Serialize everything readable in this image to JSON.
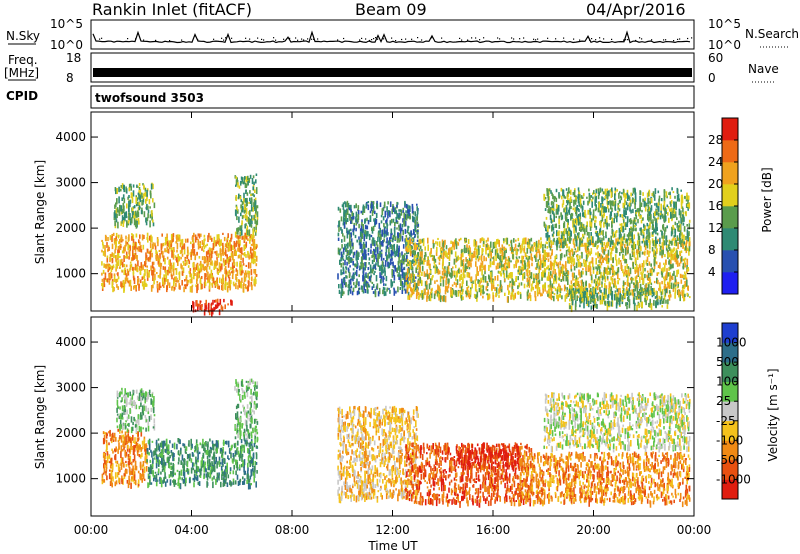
{
  "header": {
    "title": "Rankin Inlet (fitACF)",
    "beam": "Beam 09",
    "date": "04/Apr/2016"
  },
  "status": {
    "nsky_label": "N.Sky",
    "nsearch_label": "N.Search",
    "freq_label_1": "Freq.",
    "freq_label_2": "[MHz]",
    "nave_label": "Nave",
    "cpid_label": "CPID",
    "cpid_value": "twofsound 3503",
    "nsky_ticks": [
      "10^5",
      "10^0"
    ],
    "nsearch_ticks": [
      "10^5",
      "10^0"
    ],
    "freq_ticks": [
      "18",
      "8"
    ],
    "nave_ticks": [
      "60",
      "0"
    ]
  },
  "chart_data": [
    {
      "type": "heatmap",
      "panel": "power",
      "xlabel": "",
      "ylabel": "Slant Range [km]",
      "x_ticks": [
        "00:00",
        "04:00",
        "08:00",
        "12:00",
        "16:00",
        "20:00",
        "00:00"
      ],
      "y_ticks": [
        "1000",
        "2000",
        "3000",
        "4000"
      ],
      "xlim_hours": [
        0,
        24
      ],
      "ylim_km": [
        180,
        4550
      ],
      "colorbar": {
        "label": "Power [dB]",
        "tick_labels": [
          "4",
          "8",
          "12",
          "16",
          "20",
          "24",
          "28"
        ],
        "colors": [
          "#1f1ff0",
          "#2850b0",
          "#2f8a74",
          "#5a9c4c",
          "#e2cf1c",
          "#f0a21e",
          "#ee6a16",
          "#e01d10"
        ]
      },
      "echo_regions": [
        {
          "t": [
            0.4,
            6.6
          ],
          "r": [
            700,
            1900
          ],
          "level": 5
        },
        {
          "t": [
            0.9,
            2.5
          ],
          "r": [
            2100,
            3000
          ],
          "level": 3
        },
        {
          "t": [
            4.0,
            5.6
          ],
          "r": [
            200,
            450
          ],
          "level": 7
        },
        {
          "t": [
            5.7,
            6.6
          ],
          "r": [
            1900,
            3200
          ],
          "level": 3
        },
        {
          "t": [
            9.8,
            13.0
          ],
          "r": [
            600,
            2600
          ],
          "level": 2
        },
        {
          "t": [
            12.5,
            23.8
          ],
          "r": [
            500,
            1800
          ],
          "level": 4
        },
        {
          "t": [
            18.0,
            23.8
          ],
          "r": [
            1700,
            2900
          ],
          "level": 3
        },
        {
          "t": [
            19.0,
            23.0
          ],
          "r": [
            300,
            700
          ],
          "level": 3
        }
      ]
    },
    {
      "type": "heatmap",
      "panel": "velocity",
      "xlabel": "Time UT",
      "ylabel": "Slant Range [km]",
      "x_ticks": [
        "00:00",
        "04:00",
        "08:00",
        "12:00",
        "16:00",
        "20:00",
        "00:00"
      ],
      "y_ticks": [
        "1000",
        "2000",
        "3000",
        "4000"
      ],
      "xlim_hours": [
        0,
        24
      ],
      "ylim_km": [
        180,
        4550
      ],
      "colorbar": {
        "label": "Velocity [m s⁻¹]",
        "tick_labels": [
          "1000",
          "500",
          "100",
          "25",
          "-25",
          "-100",
          "-500",
          "-1000"
        ],
        "colors": [
          "#1f3fd0",
          "#2d6e8a",
          "#3d8f5c",
          "#5fc44a",
          "#c8c8c8",
          "#f4c21c",
          "#f08a14",
          "#e85010",
          "#e01d10"
        ]
      },
      "echo_regions": [
        {
          "t": [
            0.4,
            2.2
          ],
          "r": [
            900,
            2100
          ],
          "level": 6
        },
        {
          "t": [
            2.2,
            6.6
          ],
          "r": [
            900,
            1900
          ],
          "level": 2
        },
        {
          "t": [
            1.0,
            2.5
          ],
          "r": [
            2100,
            3000
          ],
          "level": 3
        },
        {
          "t": [
            5.7,
            6.6
          ],
          "r": [
            1900,
            3200
          ],
          "level": 3
        },
        {
          "t": [
            9.8,
            13.0
          ],
          "r": [
            600,
            2600
          ],
          "level": 5
        },
        {
          "t": [
            12.5,
            17.5
          ],
          "r": [
            500,
            1800
          ],
          "level": 7
        },
        {
          "t": [
            14.5,
            17.0
          ],
          "r": [
            1300,
            1800
          ],
          "level": 8
        },
        {
          "t": [
            17.0,
            23.8
          ],
          "r": [
            500,
            1600
          ],
          "level": 6
        },
        {
          "t": [
            18.0,
            23.8
          ],
          "r": [
            1700,
            2900
          ],
          "level": 4
        }
      ]
    }
  ]
}
